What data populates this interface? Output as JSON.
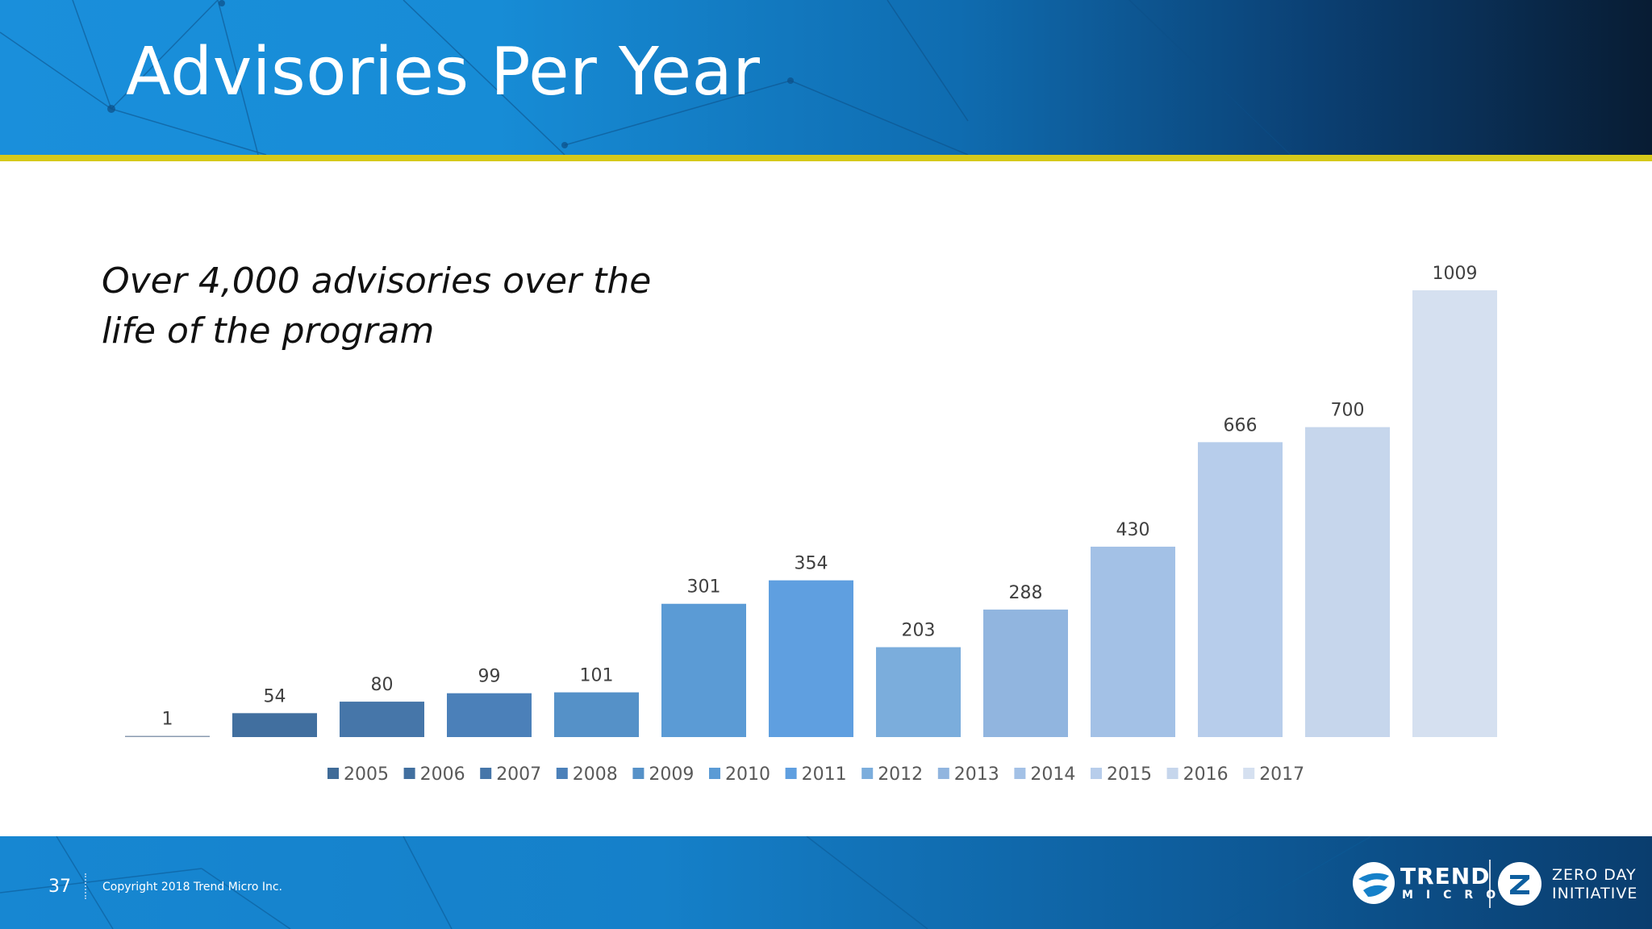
{
  "slide": {
    "title": "Advisories Per Year",
    "subtitle_line1": "Over 4,000 advisories over the",
    "subtitle_line2": "life of the program",
    "page_number": "37",
    "copyright": "Copyright 2018 Trend Micro Inc."
  },
  "logos": {
    "trend_word": "TREND",
    "micro_word": "MICRO",
    "zdi_line1": "ZERO DAY",
    "zdi_line2": "INITIATIVE"
  },
  "colors": {
    "header_start": "#1a8fdb",
    "header_end": "#081c33",
    "accent": "#d6c91a",
    "footer": "#1580c9"
  },
  "chart_data": {
    "type": "bar",
    "title": "",
    "xlabel": "",
    "ylabel": "",
    "ylim": [
      0,
      1009
    ],
    "grid": false,
    "legend_position": "bottom",
    "categories": [
      "2005",
      "2006",
      "2007",
      "2008",
      "2009",
      "2010",
      "2011",
      "2012",
      "2013",
      "2014",
      "2015",
      "2016",
      "2017"
    ],
    "values": [
      1,
      54,
      80,
      99,
      101,
      301,
      354,
      203,
      288,
      430,
      666,
      700,
      1009
    ],
    "series_colors": [
      "#3f6b98",
      "#416f9f",
      "#4676a9",
      "#4b80b9",
      "#5591c8",
      "#5b9bd5",
      "#5f9fe0",
      "#7baddc",
      "#91b5df",
      "#a3c1e6",
      "#b7cdeb",
      "#c6d6ec",
      "#d5e0f0"
    ]
  }
}
